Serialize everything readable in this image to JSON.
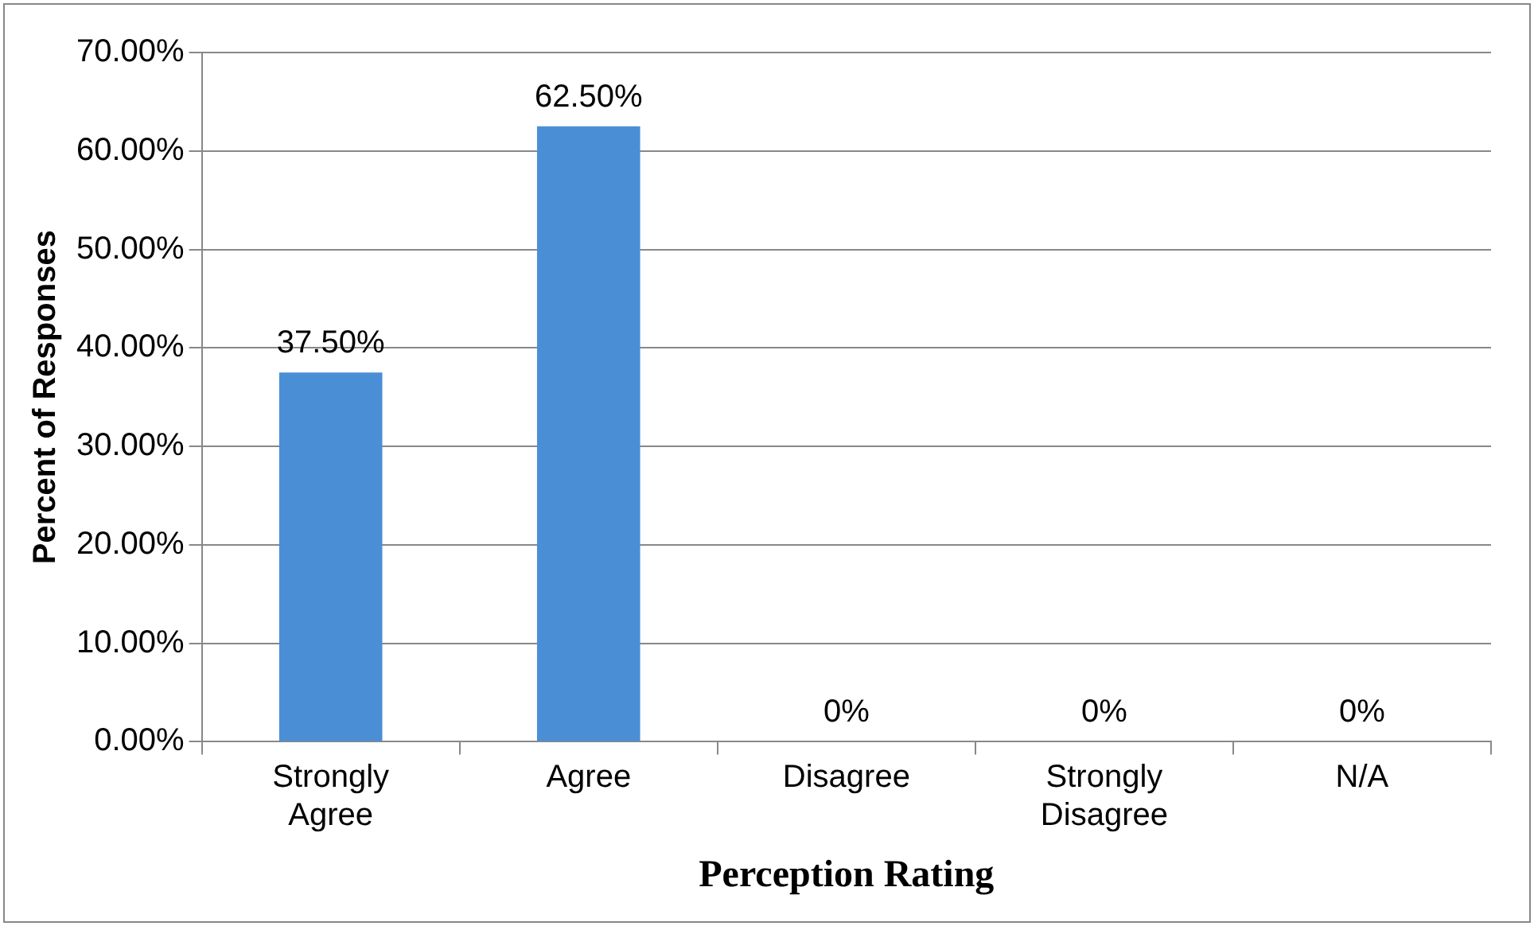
{
  "chart_data": {
    "type": "bar",
    "xlabel": "Perception Rating",
    "ylabel": "Percent of Responses",
    "categories": [
      "Strongly Agree",
      "Agree",
      "Disagree",
      "Strongly Disagree",
      "N/A"
    ],
    "values": [
      37.5,
      62.5,
      0,
      0,
      0
    ],
    "value_labels": [
      "37.50%",
      "62.50%",
      "0%",
      "0%",
      "0%"
    ],
    "color": "#4a8fd6",
    "ylim": [
      0,
      70
    ],
    "yticks": [
      {
        "value": 0,
        "label": "0.00%"
      },
      {
        "value": 10,
        "label": "10.00%"
      },
      {
        "value": 20,
        "label": "20.00%"
      },
      {
        "value": 30,
        "label": "30.00%"
      },
      {
        "value": 40,
        "label": "40.00%"
      },
      {
        "value": 50,
        "label": "50.00%"
      },
      {
        "value": 60,
        "label": "60.00%"
      },
      {
        "value": 70,
        "label": "70.00%"
      }
    ],
    "grid": "y"
  }
}
